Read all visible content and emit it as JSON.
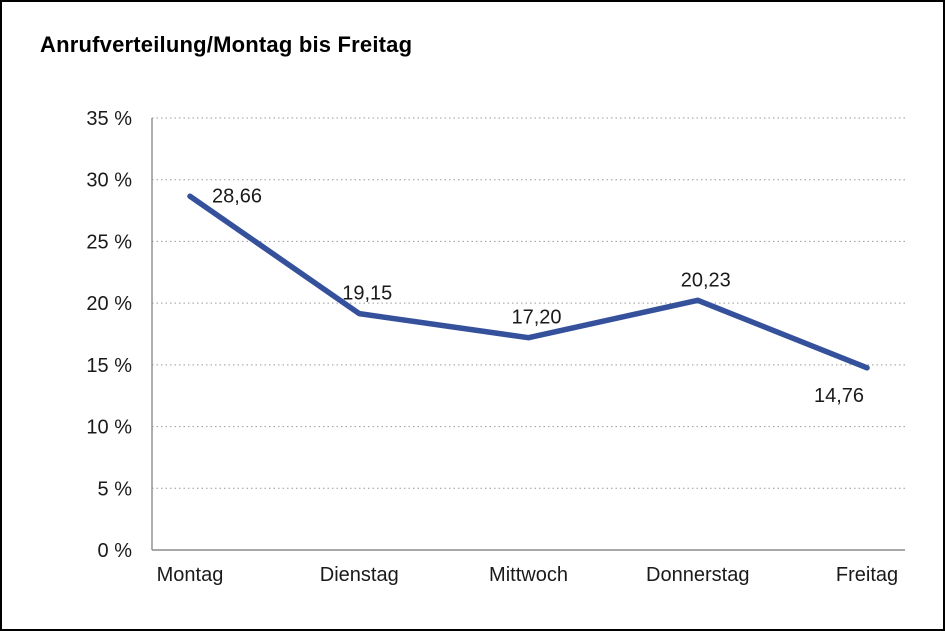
{
  "chart_data": {
    "type": "line",
    "title": "Anrufverteilung/Montag bis Freitag",
    "categories": [
      "Montag",
      "Dienstag",
      "Mittwoch",
      "Donnerstag",
      "Freitag"
    ],
    "values": [
      28.66,
      19.15,
      17.2,
      20.23,
      14.76
    ],
    "value_labels": [
      "28,66",
      "19,15",
      "17,20",
      "20,23",
      "14,76"
    ],
    "label_positions": [
      "right",
      "above",
      "above",
      "above",
      "below-left"
    ],
    "xlabel": "",
    "ylabel": "",
    "ylim": [
      0,
      35
    ],
    "y_ticks": [
      0,
      5,
      10,
      15,
      20,
      25,
      30,
      35
    ],
    "y_tick_labels": [
      "0 %",
      "5 %",
      "10 %",
      "15 %",
      "20 %",
      "25 %",
      "30 %",
      "35 %"
    ],
    "grid": "horizontal-dotted",
    "legend": "none",
    "line_color": "#35519c",
    "axis_color": "#8c8c8c",
    "grid_color": "#9a9a9a",
    "text_color": "#1a1a1a"
  }
}
